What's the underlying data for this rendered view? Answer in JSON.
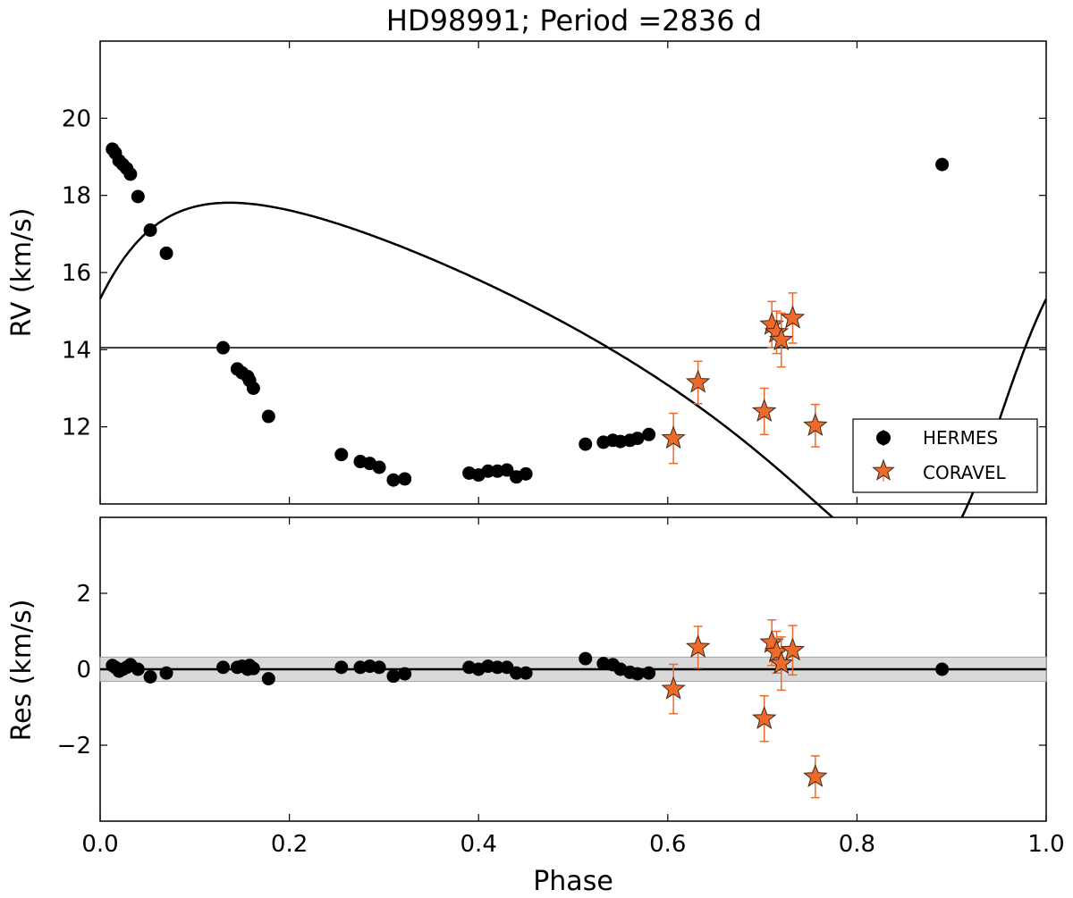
{
  "colors": {
    "hermes": "#000000",
    "coravel": "#ee6a2b",
    "band": "#d9d9d9"
  },
  "chart_data": [
    {
      "type": "scatter",
      "panel": "rv",
      "title": "HD98991; Period =2836 d",
      "xlabel": "",
      "ylabel": "RV (km/s)",
      "xlim": [
        0.0,
        1.0
      ],
      "ylim": [
        10.0,
        22.0
      ],
      "yticks": [
        12,
        14,
        16,
        18,
        20
      ],
      "yticks_labels": [
        "12",
        "14",
        "16",
        "18",
        "20"
      ],
      "systemic_velocity": 14.05,
      "orbit_model": {
        "period_days": 2836,
        "K": 4.7,
        "e": 0.4,
        "omega_deg": 240,
        "gamma": 14.05,
        "phase_offset": 0.93
      },
      "legend": {
        "position": "lower-right",
        "entries": [
          "HERMES",
          "CORAVEL"
        ]
      },
      "series": [
        {
          "name": "HERMES",
          "marker": "circle",
          "x": [
            0.013,
            0.016,
            0.02,
            0.024,
            0.028,
            0.032,
            0.04,
            0.053,
            0.07,
            0.13,
            0.145,
            0.15,
            0.156,
            0.158,
            0.162,
            0.178,
            0.255,
            0.275,
            0.285,
            0.295,
            0.31,
            0.322,
            0.39,
            0.4,
            0.41,
            0.42,
            0.43,
            0.44,
            0.45,
            0.513,
            0.532,
            0.542,
            0.55,
            0.56,
            0.568,
            0.58,
            0.89
          ],
          "y": [
            19.2,
            19.1,
            18.9,
            18.8,
            18.7,
            18.55,
            17.97,
            17.1,
            16.5,
            14.05,
            13.5,
            13.4,
            13.3,
            13.2,
            13.0,
            12.27,
            11.28,
            11.1,
            11.05,
            10.95,
            10.62,
            10.65,
            10.8,
            10.75,
            10.85,
            10.85,
            10.88,
            10.7,
            10.78,
            11.55,
            11.6,
            11.65,
            11.62,
            11.65,
            11.7,
            11.8,
            18.8
          ]
        },
        {
          "name": "CORAVEL",
          "marker": "star",
          "x": [
            0.606,
            0.632,
            0.702,
            0.71,
            0.715,
            0.72,
            0.732,
            0.756
          ],
          "y": [
            11.7,
            13.15,
            12.4,
            14.65,
            14.45,
            14.25,
            14.82,
            12.03
          ],
          "yerr": [
            0.65,
            0.55,
            0.6,
            0.6,
            0.55,
            0.7,
            0.65,
            0.55
          ]
        }
      ]
    },
    {
      "type": "scatter",
      "panel": "residuals",
      "xlabel": "Phase",
      "ylabel": "Res (km/s)",
      "xlim": [
        0.0,
        1.0
      ],
      "ylim": [
        -4.0,
        4.0
      ],
      "xticks": [
        0.0,
        0.2,
        0.4,
        0.6,
        0.8,
        1.0
      ],
      "xticks_labels": [
        "0.0",
        "0.2",
        "0.4",
        "0.6",
        "0.8",
        "1.0"
      ],
      "yticks": [
        -2,
        0,
        2
      ],
      "yticks_labels": [
        "−2",
        "0",
        "2"
      ],
      "band": [
        -0.32,
        0.32
      ],
      "series": [
        {
          "name": "HERMES",
          "marker": "circle",
          "x": [
            0.013,
            0.016,
            0.02,
            0.024,
            0.028,
            0.032,
            0.04,
            0.053,
            0.07,
            0.13,
            0.145,
            0.15,
            0.156,
            0.158,
            0.162,
            0.178,
            0.255,
            0.275,
            0.285,
            0.295,
            0.31,
            0.322,
            0.39,
            0.4,
            0.41,
            0.42,
            0.43,
            0.44,
            0.45,
            0.513,
            0.532,
            0.542,
            0.55,
            0.56,
            0.568,
            0.58,
            0.89
          ],
          "y": [
            0.1,
            0.05,
            -0.05,
            0.0,
            0.05,
            0.12,
            0.0,
            -0.2,
            -0.1,
            0.05,
            0.05,
            0.08,
            0.0,
            0.1,
            0.02,
            -0.25,
            0.05,
            0.05,
            0.08,
            0.05,
            -0.18,
            -0.12,
            0.05,
            0.0,
            0.08,
            0.05,
            0.05,
            -0.1,
            -0.1,
            0.28,
            0.15,
            0.12,
            0.0,
            -0.08,
            -0.12,
            -0.1,
            0.0
          ]
        },
        {
          "name": "CORAVEL",
          "marker": "star",
          "x": [
            0.606,
            0.632,
            0.702,
            0.71,
            0.715,
            0.72,
            0.732,
            0.756
          ],
          "y": [
            -0.52,
            0.58,
            -1.3,
            0.7,
            0.45,
            0.15,
            0.5,
            -2.83
          ],
          "yerr": [
            0.65,
            0.55,
            0.6,
            0.6,
            0.55,
            0.7,
            0.65,
            0.55
          ]
        }
      ]
    }
  ]
}
